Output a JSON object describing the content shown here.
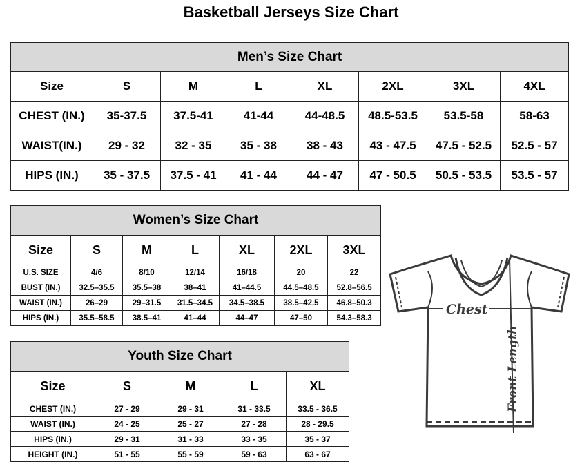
{
  "title": "Basketball Jerseys Size Chart",
  "mens": {
    "title": "Men’s Size Chart",
    "header": [
      "Size",
      "S",
      "M",
      "L",
      "XL",
      "2XL",
      "3XL",
      "4XL"
    ],
    "rows": [
      [
        "CHEST (IN.)",
        "35-37.5",
        "37.5-41",
        "41-44",
        "44-48.5",
        "48.5-53.5",
        "53.5-58",
        "58-63"
      ],
      [
        "WAIST(IN.)",
        "29 - 32",
        "32 - 35",
        "35 - 38",
        "38 - 43",
        "43 - 47.5",
        "47.5 - 52.5",
        "52.5 - 57"
      ],
      [
        "HIPS (IN.)",
        "35 - 37.5",
        "37.5 - 41",
        "41 - 44",
        "44 - 47",
        "47 - 50.5",
        "50.5 - 53.5",
        "53.5 - 57"
      ]
    ]
  },
  "womens": {
    "title": "Women’s Size Chart",
    "header": [
      "Size",
      "S",
      "M",
      "L",
      "XL",
      "2XL",
      "3XL"
    ],
    "rows": [
      [
        "U.S. SIZE",
        "4/6",
        "8/10",
        "12/14",
        "16/18",
        "20",
        "22"
      ],
      [
        "BUST (IN.)",
        "32.5–35.5",
        "35.5–38",
        "38–41",
        "41–44.5",
        "44.5–48.5",
        "52.8–56.5"
      ],
      [
        "WAIST (IN.)",
        "26–29",
        "29–31.5",
        "31.5–34.5",
        "34.5–38.5",
        "38.5–42.5",
        "46.8–50.3"
      ],
      [
        "HIPS (IN.)",
        "35.5–58.5",
        "38.5–41",
        "41–44",
        "44–47",
        "47–50",
        "54.3–58.3"
      ]
    ]
  },
  "youth": {
    "title": "Youth Size Chart",
    "header": [
      "Size",
      "S",
      "M",
      "L",
      "XL"
    ],
    "rows": [
      [
        "CHEST (IN.)",
        "27 - 29",
        "29 - 31",
        "31 - 33.5",
        "33.5 - 36.5"
      ],
      [
        "WAIST (IN.)",
        "24 - 25",
        "25 - 27",
        "27 - 28",
        "28 - 29.5"
      ],
      [
        "HIPS (IN.)",
        "29 - 31",
        "31 - 33",
        "33 - 35",
        "35 - 37"
      ],
      [
        "HEIGHT (IN.)",
        "51 - 55",
        "55 - 59",
        "59 - 63",
        "63 - 67"
      ]
    ]
  },
  "diagram": {
    "chest_label": "Chest",
    "length_label": "Front Length",
    "line_color": "#3a3a3a"
  }
}
